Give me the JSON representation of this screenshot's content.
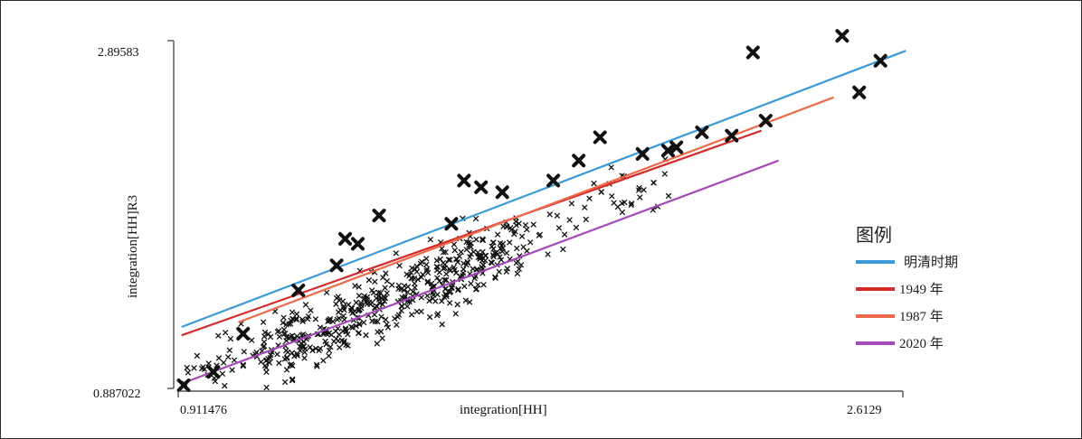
{
  "chart_data": {
    "type": "scatter",
    "title": "",
    "xlabel": "integration[HH]",
    "ylabel": "integration[HH]R3",
    "x_ticks": [
      "0.911476",
      "2.6129"
    ],
    "y_ticks": [
      "2.89583",
      "0.887022"
    ],
    "xlim": [
      0.911476,
      2.6129
    ],
    "ylim": [
      0.887022,
      2.89583
    ],
    "grid": false,
    "legend": {
      "title": "图例",
      "placement": "right",
      "entries": [
        {
          "label": "明清时期",
          "color": "#3a9ad9"
        },
        {
          "label": "1949 年",
          "color": "#d42a2a"
        },
        {
          "label": "1987 年",
          "color": "#ee6a4a"
        },
        {
          "label": "2020 年",
          "color": "#a44bb8"
        }
      ]
    },
    "fit_lines": [
      {
        "label": "明清时期",
        "color": "#3a9ad9",
        "x": [
          0.915,
          2.62
        ],
        "y": [
          1.24,
          2.9
        ]
      },
      {
        "label": "1949 年",
        "color": "#d42a2a",
        "x": [
          0.915,
          2.28
        ],
        "y": [
          1.19,
          2.42
        ]
      },
      {
        "label": "1987 年",
        "color": "#ee6a4a",
        "x": [
          1.05,
          2.45
        ],
        "y": [
          1.27,
          2.62
        ]
      },
      {
        "label": "2020 年",
        "color": "#a44bb8",
        "x": [
          0.915,
          2.32
        ],
        "y": [
          0.9,
          2.24
        ]
      }
    ],
    "large_points": [
      {
        "x": 0.92,
        "y": 0.89
      },
      {
        "x": 0.99,
        "y": 0.97
      },
      {
        "x": 1.06,
        "y": 1.2
      },
      {
        "x": 1.19,
        "y": 1.46
      },
      {
        "x": 1.28,
        "y": 1.61
      },
      {
        "x": 1.3,
        "y": 1.77
      },
      {
        "x": 1.33,
        "y": 1.74
      },
      {
        "x": 1.38,
        "y": 1.91
      },
      {
        "x": 1.55,
        "y": 1.86
      },
      {
        "x": 1.58,
        "y": 2.12
      },
      {
        "x": 1.62,
        "y": 2.08
      },
      {
        "x": 1.67,
        "y": 2.05
      },
      {
        "x": 1.79,
        "y": 2.12
      },
      {
        "x": 1.85,
        "y": 2.24
      },
      {
        "x": 1.9,
        "y": 2.38
      },
      {
        "x": 2.0,
        "y": 2.28
      },
      {
        "x": 2.06,
        "y": 2.3
      },
      {
        "x": 2.08,
        "y": 2.32
      },
      {
        "x": 2.14,
        "y": 2.41
      },
      {
        "x": 2.21,
        "y": 2.39
      },
      {
        "x": 2.26,
        "y": 2.89
      },
      {
        "x": 2.29,
        "y": 2.48
      },
      {
        "x": 2.47,
        "y": 2.99
      },
      {
        "x": 2.51,
        "y": 2.65
      },
      {
        "x": 2.56,
        "y": 2.84
      }
    ]
  }
}
